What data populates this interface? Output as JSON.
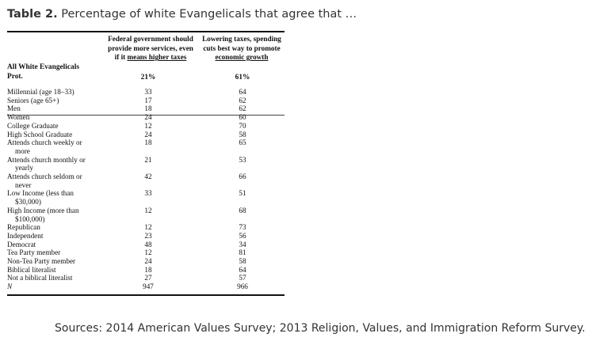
{
  "caption": {
    "label": "Table 2.",
    "text": "Percentage of white Evangelicals that agree that …"
  },
  "table": {
    "col1_header": {
      "line1": "Federal government should",
      "line2": "provide more services, even",
      "line3_prefix": "if it ",
      "line3_underlined": "means higher taxes"
    },
    "col2_header": {
      "line1": "Lowering taxes, spending",
      "line2": "cuts best way to promote",
      "line3_underlined": "economic growth"
    },
    "group_label_line1": "All White Evangelicals",
    "group_label_line2": "Prot.",
    "group_total_col1": "21%",
    "group_total_col2": "61%",
    "rows": [
      {
        "label": "Millennial (age 18–33)",
        "col1": "33",
        "col2": "64"
      },
      {
        "label": "Seniors (age 65+)",
        "col1": "17",
        "col2": "62"
      },
      {
        "label": "Men",
        "col1": "18",
        "col2": "62"
      },
      {
        "label": "Women",
        "col1": "24",
        "col2": "60"
      },
      {
        "label": "College Graduate",
        "col1": "12",
        "col2": "70"
      },
      {
        "label": "High School Graduate",
        "col1": "24",
        "col2": "58"
      },
      {
        "label": "Attends church weekly or",
        "label2": "more",
        "col1": "18",
        "col2": "65"
      },
      {
        "label": "Attends church monthly or",
        "label2": "yearly",
        "col1": "21",
        "col2": "53"
      },
      {
        "label": "Attends church seldom or",
        "label2": "never",
        "col1": "42",
        "col2": "66"
      },
      {
        "label": "Low Income (less than",
        "label2": "$30,000)",
        "col1": "33",
        "col2": "51"
      },
      {
        "label": "High Income (more than",
        "label2": "$100,000)",
        "col1": "12",
        "col2": "68"
      },
      {
        "label": "Republican",
        "col1": "12",
        "col2": "73"
      },
      {
        "label": "Independent",
        "col1": "23",
        "col2": "56"
      },
      {
        "label": "Democrat",
        "col1": "48",
        "col2": "34"
      },
      {
        "label": "Tea Party member",
        "col1": "12",
        "col2": "81"
      },
      {
        "label": "Non-Tea Party member",
        "col1": "24",
        "col2": "58"
      },
      {
        "label": "Biblical literalist",
        "col1": "18",
        "col2": "64"
      },
      {
        "label": "Not a biblical literalist",
        "col1": "27",
        "col2": "57"
      },
      {
        "label": "N",
        "col1": "947",
        "col2": "966",
        "italic": true
      }
    ]
  },
  "sources": "Sources: 2014 American Values Survey; 2013 Religion, Values, and Immigration Reform Survey."
}
